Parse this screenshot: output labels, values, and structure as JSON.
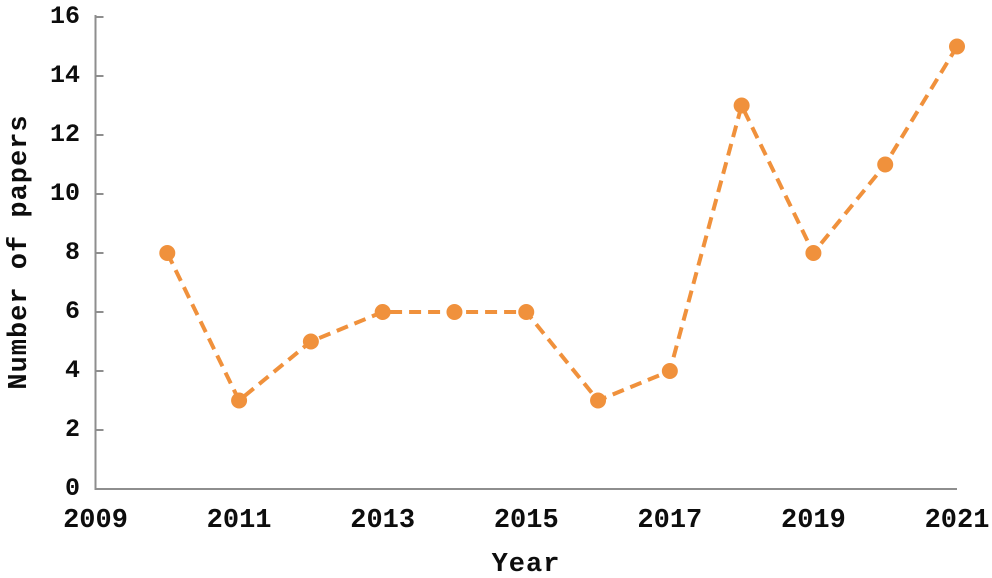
{
  "chart_data": {
    "type": "line",
    "title": "",
    "xlabel": "Year",
    "ylabel": "Number of papers",
    "x": [
      2010,
      2011,
      2012,
      2013,
      2014,
      2015,
      2016,
      2017,
      2018,
      2019,
      2020,
      2021
    ],
    "values": [
      8,
      3,
      5,
      6,
      6,
      6,
      3,
      4,
      13,
      8,
      11,
      15
    ],
    "x_ticks": [
      2009,
      2011,
      2013,
      2015,
      2017,
      2019,
      2021
    ],
    "y_ticks": [
      0,
      2,
      4,
      6,
      8,
      10,
      12,
      14,
      16
    ],
    "xlim": [
      2009,
      2021
    ],
    "ylim": [
      0,
      16
    ],
    "grid": false,
    "legend": "none",
    "line_style": "dashed",
    "marker": "filled-circle",
    "colors": {
      "line": "#F0913C",
      "marker": "#F0913C",
      "axis": "#8E8E8E",
      "text": "#0D0D0D"
    }
  }
}
